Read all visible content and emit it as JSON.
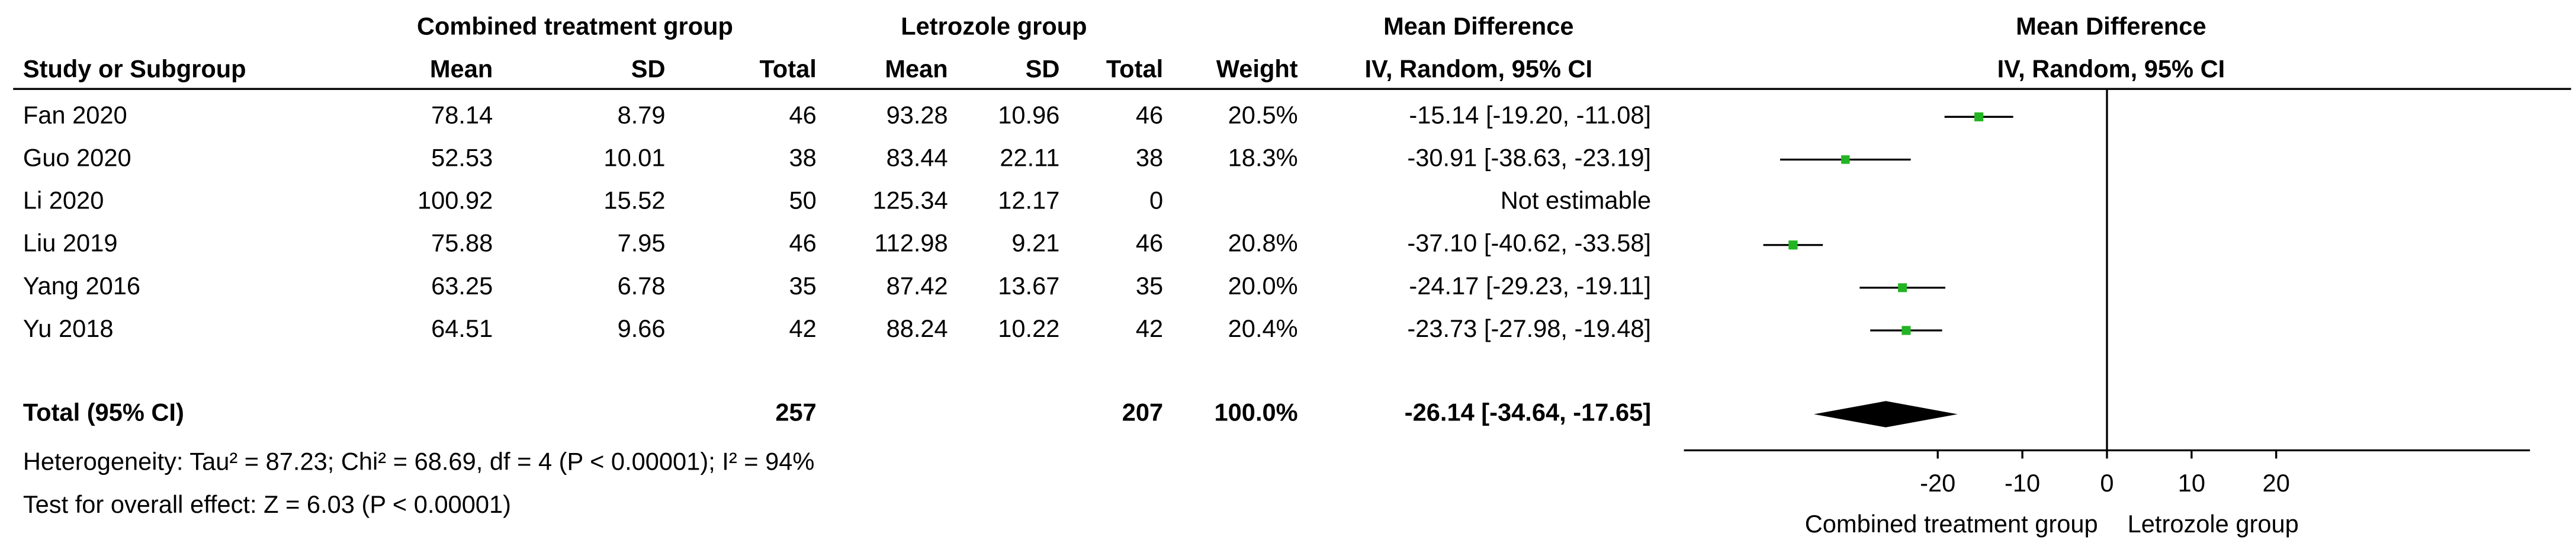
{
  "chart_data": {
    "type": "forest",
    "group_headers": [
      "Combined treatment group",
      "Letrozole group",
      "Mean Difference",
      "Mean Difference"
    ],
    "columns": [
      "Study or Subgroup",
      "Mean",
      "SD",
      "Total",
      "Mean",
      "SD",
      "Total",
      "Weight",
      "IV, Random, 95% CI",
      "IV, Random, 95% CI"
    ],
    "studies": [
      {
        "name": "Fan 2020",
        "mean1": 78.14,
        "sd1": 8.79,
        "n1": 46,
        "mean2": 93.28,
        "sd2": 10.96,
        "n2": 46,
        "weight": 20.5,
        "weight_label": "20.5%",
        "md": -15.14,
        "ci_low": -19.2,
        "ci_high": -11.08,
        "ci_label": "-15.14 [-19.20, -11.08]"
      },
      {
        "name": "Guo 2020",
        "mean1": 52.53,
        "sd1": 10.01,
        "n1": 38,
        "mean2": 83.44,
        "sd2": 22.11,
        "n2": 38,
        "weight": 18.3,
        "weight_label": "18.3%",
        "md": -30.91,
        "ci_low": -38.63,
        "ci_high": -23.19,
        "ci_label": "-30.91 [-38.63, -23.19]"
      },
      {
        "name": "Li 2020",
        "mean1": 100.92,
        "sd1": 15.52,
        "n1": 50,
        "mean2": 125.34,
        "sd2": 12.17,
        "n2": 0,
        "weight": null,
        "weight_label": null,
        "md": null,
        "ci_low": null,
        "ci_high": null,
        "ci_label": "Not estimable"
      },
      {
        "name": "Liu 2019",
        "mean1": 75.88,
        "sd1": 7.95,
        "n1": 46,
        "mean2": 112.98,
        "sd2": 9.21,
        "n2": 46,
        "weight": 20.8,
        "weight_label": "20.8%",
        "md": -37.1,
        "ci_low": -40.62,
        "ci_high": -33.58,
        "ci_label": "-37.10 [-40.62, -33.58]"
      },
      {
        "name": "Yang 2016",
        "mean1": 63.25,
        "sd1": 6.78,
        "n1": 35,
        "mean2": 87.42,
        "sd2": 13.67,
        "n2": 35,
        "weight": 20.0,
        "weight_label": "20.0%",
        "md": -24.17,
        "ci_low": -29.23,
        "ci_high": -19.11,
        "ci_label": "-24.17 [-29.23, -19.11]"
      },
      {
        "name": "Yu 2018",
        "mean1": 64.51,
        "sd1": 9.66,
        "n1": 42,
        "mean2": 88.24,
        "sd2": 10.22,
        "n2": 42,
        "weight": 20.4,
        "weight_label": "20.4%",
        "md": -23.73,
        "ci_low": -27.98,
        "ci_high": -19.48,
        "ci_label": "-23.73 [-27.98, -19.48]"
      }
    ],
    "total": {
      "name": "Total (95% CI)",
      "n1": 257,
      "n2": 207,
      "weight": 100,
      "weight_label": "100.0%",
      "md": -26.14,
      "ci_low": -34.64,
      "ci_high": -17.65,
      "ci_label": "-26.14 [-34.64, -17.65]"
    },
    "heterogeneity": "Heterogeneity: Tau² = 87.23; Chi² = 68.69, df = 4 (P < 0.00001); I² = 94%",
    "overall_effect": "Test for overall effect: Z = 6.03 (P < 0.00001)",
    "xlim": [
      -50,
      50
    ],
    "xticks": [
      -20,
      -10,
      0,
      10,
      20
    ],
    "x_label_left": "Combined treatment group",
    "x_label_right": "Letrozole group",
    "marker_color": "#22b422"
  }
}
